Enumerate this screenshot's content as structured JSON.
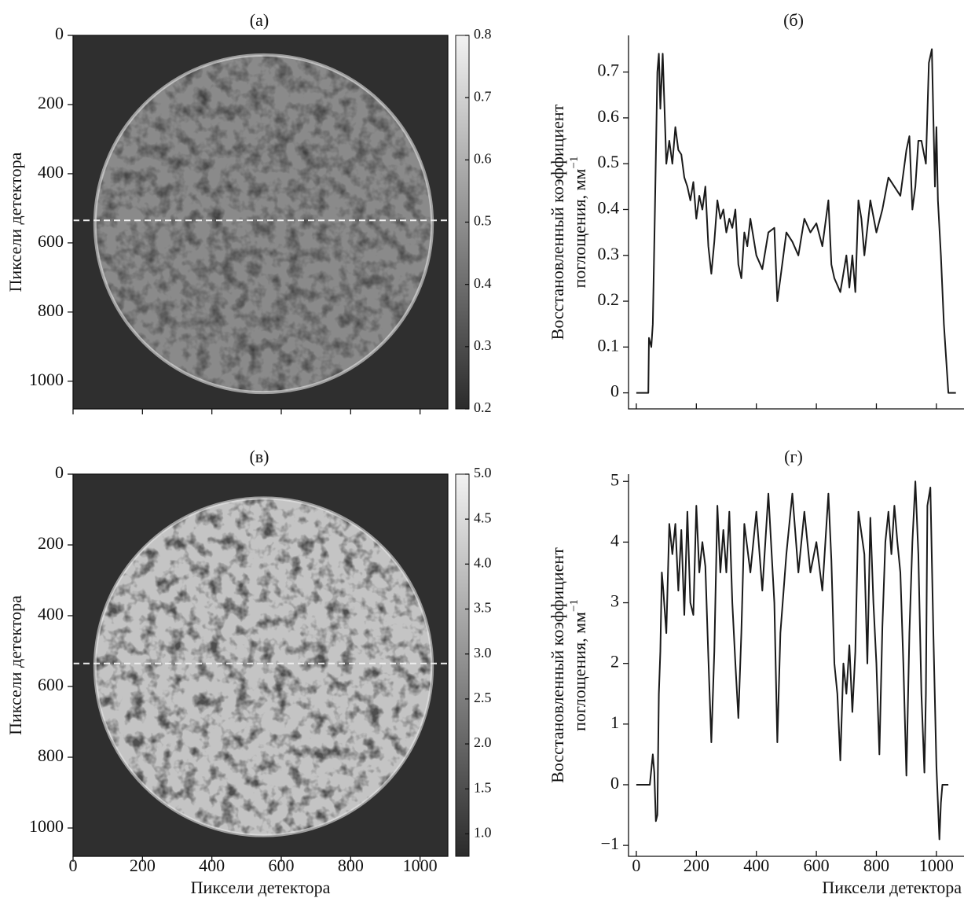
{
  "chart_data": [
    {
      "type": "image",
      "title": "(а)",
      "ylabel": "Пиксели детектора",
      "xlim": [
        0,
        1080
      ],
      "ylim": [
        1080,
        0
      ],
      "xticks": [
        0,
        200,
        400,
        600,
        800,
        1000
      ],
      "x_tick_labels": false,
      "yticks": [
        0,
        200,
        400,
        600,
        800,
        1000
      ],
      "hline": 535,
      "colorbar": {
        "lim": [
          0.2,
          0.8
        ],
        "ticks": [
          0.2,
          0.3,
          0.4,
          0.5,
          0.6,
          0.7,
          0.8
        ]
      }
    },
    {
      "type": "line",
      "title": "(б)",
      "ylabel": [
        "Восстановленный коэффициент",
        "поглощения, мм"
      ],
      "ylabel_superscript": "−1",
      "xlim": [
        -26,
        1092
      ],
      "ylim": [
        -0.035,
        0.78
      ],
      "xticks": [
        0,
        200,
        400,
        600,
        800,
        1000
      ],
      "x_tick_labels": false,
      "yticks": [
        0,
        0.1,
        0.2,
        0.3,
        0.4,
        0.5,
        0.6,
        0.7
      ],
      "x": [
        0,
        40,
        42,
        50,
        55,
        62,
        70,
        75,
        80,
        88,
        95,
        100,
        110,
        120,
        130,
        140,
        150,
        160,
        170,
        180,
        190,
        200,
        210,
        220,
        230,
        240,
        250,
        260,
        270,
        280,
        290,
        300,
        310,
        320,
        330,
        340,
        350,
        360,
        370,
        380,
        400,
        420,
        440,
        460,
        470,
        480,
        490,
        500,
        520,
        540,
        560,
        580,
        600,
        620,
        640,
        650,
        660,
        680,
        700,
        710,
        720,
        730,
        740,
        750,
        760,
        780,
        800,
        820,
        840,
        860,
        880,
        900,
        910,
        920,
        930,
        940,
        950,
        965,
        975,
        985,
        990,
        995,
        1000,
        1005,
        1015,
        1025,
        1035,
        1040,
        1065
      ],
      "series": [
        {
          "color": "#1a1a1a",
          "values": [
            0,
            0,
            0.12,
            0.1,
            0.15,
            0.4,
            0.7,
            0.74,
            0.62,
            0.74,
            0.6,
            0.5,
            0.55,
            0.5,
            0.58,
            0.53,
            0.52,
            0.47,
            0.45,
            0.42,
            0.46,
            0.38,
            0.43,
            0.4,
            0.45,
            0.32,
            0.26,
            0.33,
            0.42,
            0.38,
            0.4,
            0.35,
            0.38,
            0.36,
            0.4,
            0.28,
            0.25,
            0.35,
            0.32,
            0.38,
            0.3,
            0.27,
            0.35,
            0.36,
            0.2,
            0.25,
            0.3,
            0.35,
            0.33,
            0.3,
            0.38,
            0.35,
            0.37,
            0.32,
            0.42,
            0.28,
            0.25,
            0.22,
            0.3,
            0.23,
            0.3,
            0.22,
            0.42,
            0.38,
            0.3,
            0.42,
            0.35,
            0.4,
            0.47,
            0.45,
            0.43,
            0.53,
            0.56,
            0.4,
            0.45,
            0.55,
            0.55,
            0.5,
            0.72,
            0.75,
            0.6,
            0.45,
            0.58,
            0.42,
            0.3,
            0.15,
            0.05,
            0,
            0
          ]
        }
      ]
    },
    {
      "type": "image",
      "title": "(в)",
      "ylabel": "Пиксели детектора",
      "xlabel": "Пиксели детектора",
      "xlim": [
        0,
        1080
      ],
      "ylim": [
        1080,
        0
      ],
      "xticks": [
        0,
        200,
        400,
        600,
        800,
        1000
      ],
      "x_tick_labels": true,
      "yticks": [
        0,
        200,
        400,
        600,
        800,
        1000
      ],
      "hline": 535,
      "colorbar": {
        "lim": [
          0.75,
          5.0
        ],
        "ticks": [
          {
            "value": 1,
            "label": "1.0"
          },
          1.5,
          {
            "value": 2,
            "label": "2.0"
          },
          2.5,
          {
            "value": 3,
            "label": "3.0"
          },
          3.5,
          {
            "value": 4,
            "label": "4.0"
          },
          4.5,
          {
            "value": 5,
            "label": "5.0"
          }
        ]
      }
    },
    {
      "type": "line",
      "title": "(г)",
      "ylabel": [
        "Восстановленный коэффициент",
        "поглощения, мм"
      ],
      "ylabel_superscript": "−1",
      "xlabel": "Пиксели детектора",
      "xlim": [
        -26,
        1092
      ],
      "ylim": [
        -1.18,
        5.12
      ],
      "xticks": [
        0,
        200,
        400,
        600,
        800,
        1000
      ],
      "x_tick_labels": true,
      "yticks": [
        {
          "value": -1,
          "label": "−1"
        },
        0,
        1,
        2,
        3,
        4,
        5
      ],
      "x": [
        0,
        45,
        55,
        60,
        65,
        70,
        75,
        80,
        85,
        90,
        100,
        110,
        120,
        130,
        140,
        150,
        160,
        170,
        180,
        190,
        200,
        210,
        220,
        230,
        240,
        250,
        260,
        270,
        280,
        290,
        300,
        310,
        320,
        330,
        340,
        350,
        360,
        380,
        400,
        420,
        440,
        460,
        470,
        480,
        500,
        520,
        540,
        560,
        580,
        600,
        620,
        640,
        650,
        660,
        670,
        680,
        690,
        700,
        710,
        720,
        730,
        740,
        760,
        770,
        780,
        790,
        800,
        810,
        820,
        830,
        840,
        850,
        860,
        870,
        880,
        890,
        900,
        910,
        920,
        930,
        940,
        950,
        960,
        965,
        970,
        980,
        990,
        1000,
        1010,
        1015,
        1020,
        1040
      ],
      "series": [
        {
          "color": "#1a1a1a",
          "values": [
            0,
            0,
            0.5,
            0.2,
            -0.6,
            -0.5,
            1.5,
            2.2,
            3.5,
            3.2,
            2.5,
            4.3,
            3.8,
            4.3,
            3.2,
            4.2,
            2.8,
            4.5,
            3.0,
            2.8,
            4.6,
            3.5,
            4.0,
            3.6,
            2.1,
            0.7,
            2.2,
            4.6,
            3.5,
            4.2,
            3.5,
            4.5,
            3.0,
            2.0,
            1.1,
            2.5,
            4.3,
            3.5,
            4.5,
            3.2,
            4.8,
            3.0,
            0.7,
            2.5,
            3.8,
            4.8,
            3.5,
            4.5,
            3.5,
            4.0,
            3.2,
            4.8,
            3.7,
            2.0,
            1.5,
            0.4,
            2.0,
            1.5,
            2.3,
            1.2,
            2.2,
            4.5,
            3.8,
            2.0,
            4.4,
            3.0,
            2.0,
            0.5,
            2.6,
            4.0,
            4.5,
            3.8,
            4.6,
            4.0,
            3.5,
            2.0,
            0.15,
            2.5,
            4.0,
            5.0,
            3.8,
            1.5,
            0.2,
            1.5,
            4.6,
            4.9,
            2.5,
            0.3,
            -0.9,
            -0.3,
            0,
            0
          ]
        }
      ]
    }
  ]
}
